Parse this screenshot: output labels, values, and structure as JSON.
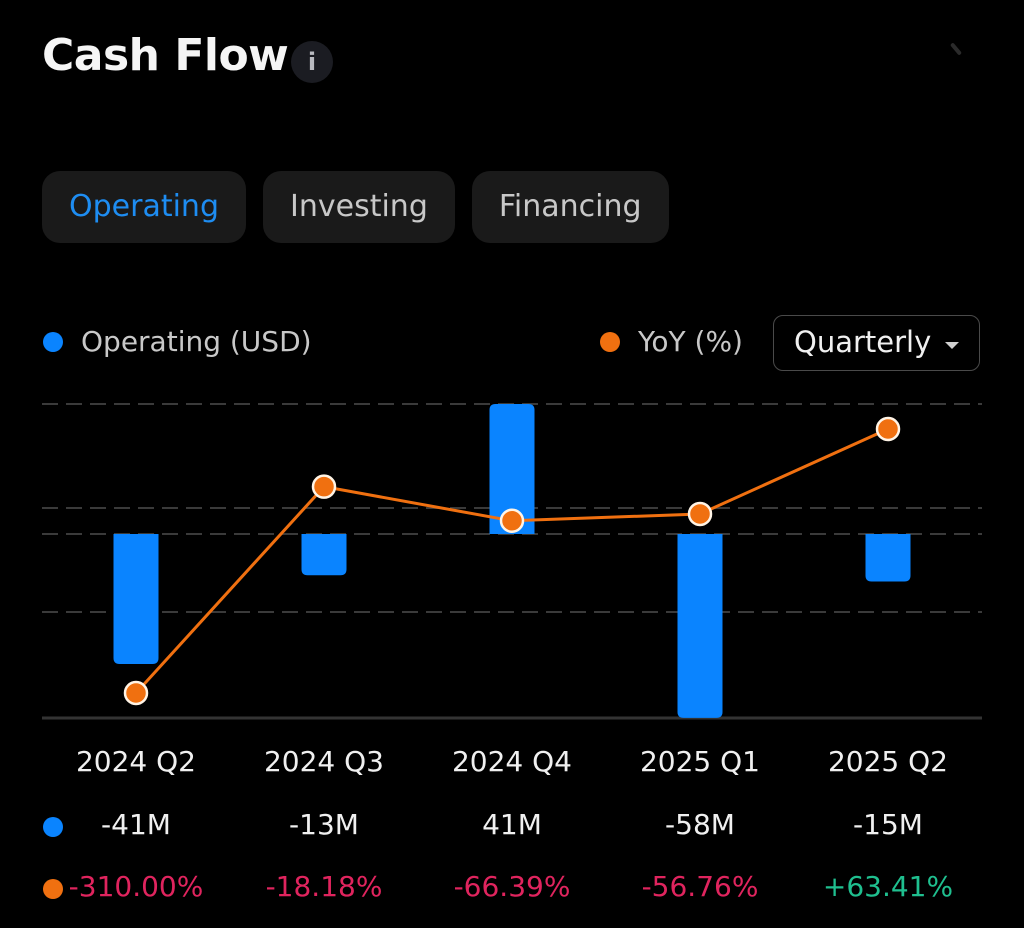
{
  "header": {
    "title": "Cash Flow",
    "info_icon": "i"
  },
  "tabs": [
    {
      "label": "Operating",
      "active": true
    },
    {
      "label": "Investing",
      "active": false
    },
    {
      "label": "Financing",
      "active": false
    }
  ],
  "legend": {
    "bars": {
      "label": "Operating (USD)",
      "color": "#0a84ff"
    },
    "line": {
      "label": "YoY (%)",
      "color": "#f07010"
    }
  },
  "period_select": {
    "value": "Quarterly"
  },
  "colors": {
    "negative": "#e0245e",
    "positive": "#1fbf8f",
    "bar": "#0a84ff",
    "line": "#f07010"
  },
  "chart_data": {
    "type": "bar",
    "title": "Cash Flow",
    "categories": [
      "2024 Q2",
      "2024 Q3",
      "2024 Q4",
      "2025 Q1",
      "2025 Q2"
    ],
    "series": [
      {
        "name": "Operating (USD)",
        "type": "bar",
        "unit": "M USD",
        "values": [
          -41,
          -13,
          41,
          -58,
          -15
        ],
        "labels": [
          "-41M",
          "-13M",
          "41M",
          "-58M",
          "-15M"
        ]
      },
      {
        "name": "YoY (%)",
        "type": "line",
        "unit": "%",
        "values": [
          -310.0,
          -18.18,
          -66.39,
          -56.76,
          63.41
        ],
        "labels": [
          "-310.00%",
          "-18.18%",
          "-66.39%",
          "-56.76%",
          "+63.41%"
        ]
      }
    ],
    "bar_ylim": [
      -58,
      41
    ],
    "line_ylim": [
      -310,
      63.41
    ],
    "grid": true,
    "legend": "top"
  }
}
